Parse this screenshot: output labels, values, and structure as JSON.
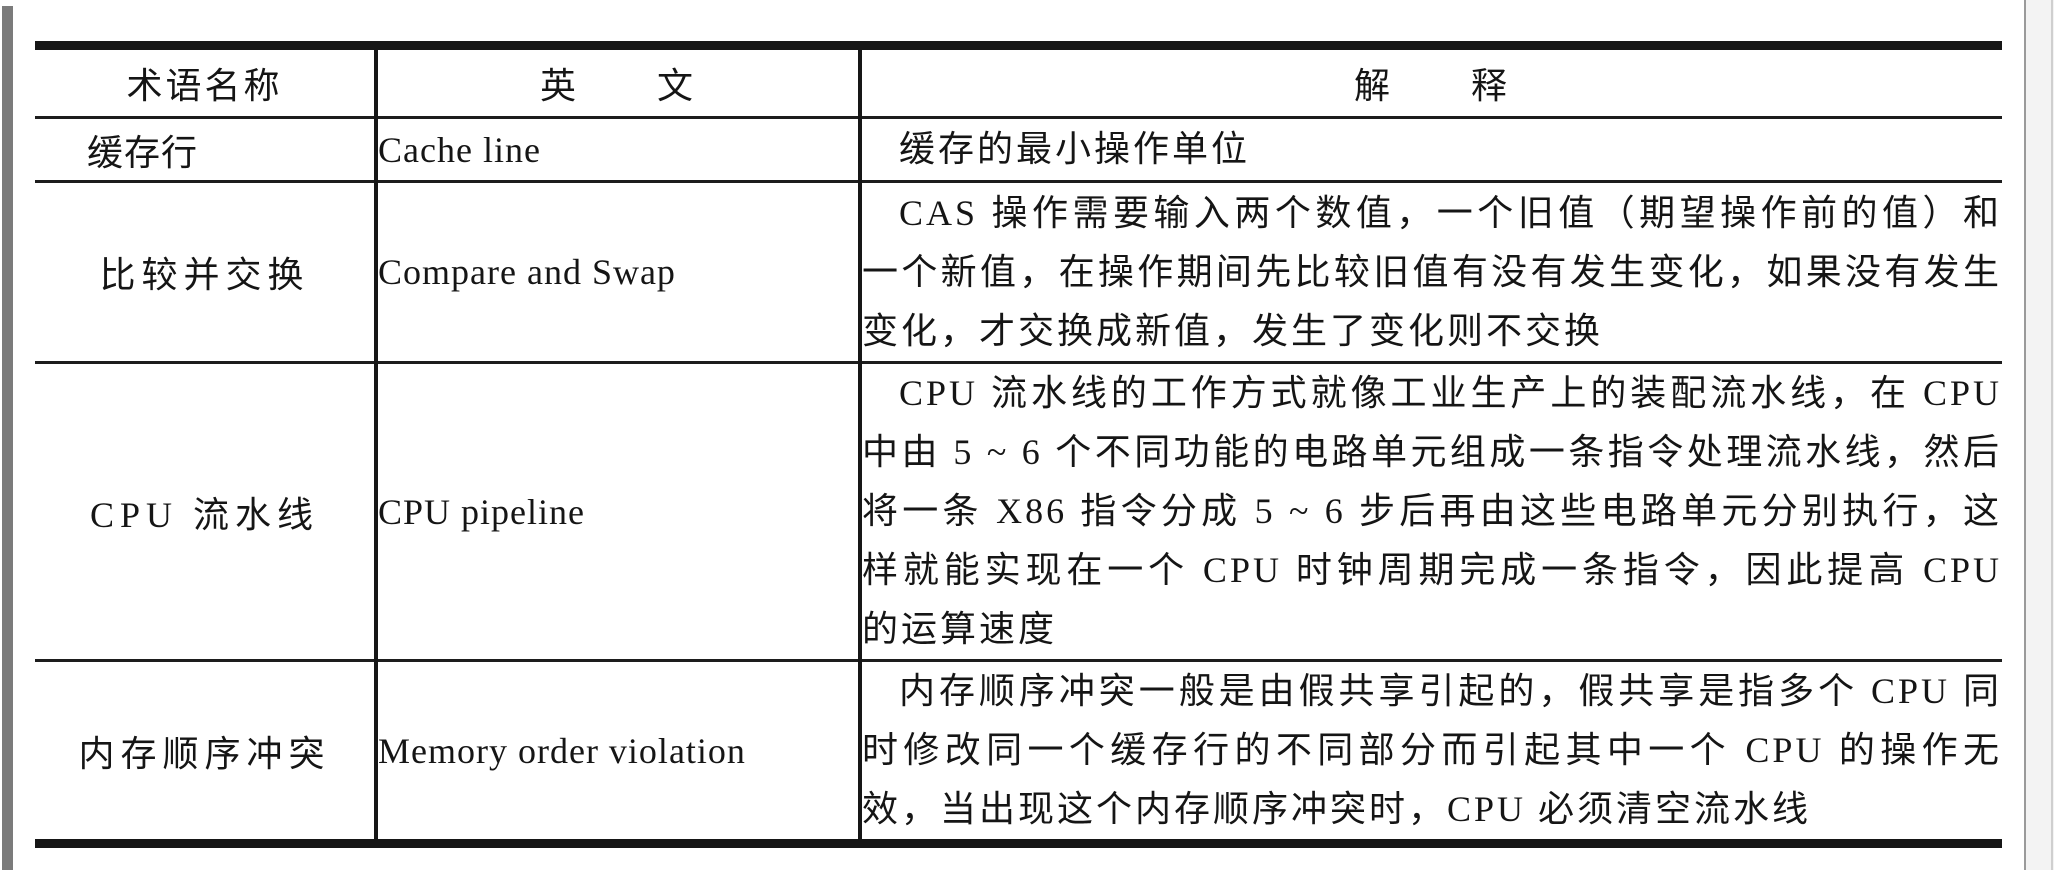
{
  "chrome": {
    "left_strip_color": "#7b7b7b",
    "right_gutter_color": "#f3f3f3",
    "page_background": "#ffffff",
    "line_color": "#161616"
  },
  "table": {
    "columns": [
      {
        "key": "term",
        "label": "术语名称"
      },
      {
        "key": "english",
        "label": "英　　文"
      },
      {
        "key": "explanation",
        "label": "解　　释"
      }
    ],
    "rows": [
      {
        "term": "缓存行",
        "english": "Cache line",
        "explanation": "缓存的最小操作单位"
      },
      {
        "term": "比较并交换",
        "english": "Compare and Swap",
        "explanation": "CAS 操作需要输入两个数值，一个旧值（期望操作前的值）和一个新值，在操作期间先比较旧值有没有发生变化，如果没有发生变化，才交换成新值，发生了变化则不交换"
      },
      {
        "term": "CPU 流水线",
        "english": "CPU pipeline",
        "explanation": "CPU 流水线的工作方式就像工业生产上的装配流水线，在 CPU 中由 5 ~ 6 个不同功能的电路单元组成一条指令处理流水线，然后将一条 X86 指令分成 5 ~ 6 步后再由这些电路单元分别执行，这样就能实现在一个 CPU 时钟周期完成一条指令，因此提高 CPU 的运算速度"
      },
      {
        "term": "内存顺序冲突",
        "english": "Memory order violation",
        "explanation": "内存顺序冲突一般是由假共享引起的，假共享是指多个 CPU 同时修改同一个缓存行的不同部分而引起其中一个 CPU 的操作无效，当出现这个内存顺序冲突时，CPU 必须清空流水线"
      }
    ]
  }
}
